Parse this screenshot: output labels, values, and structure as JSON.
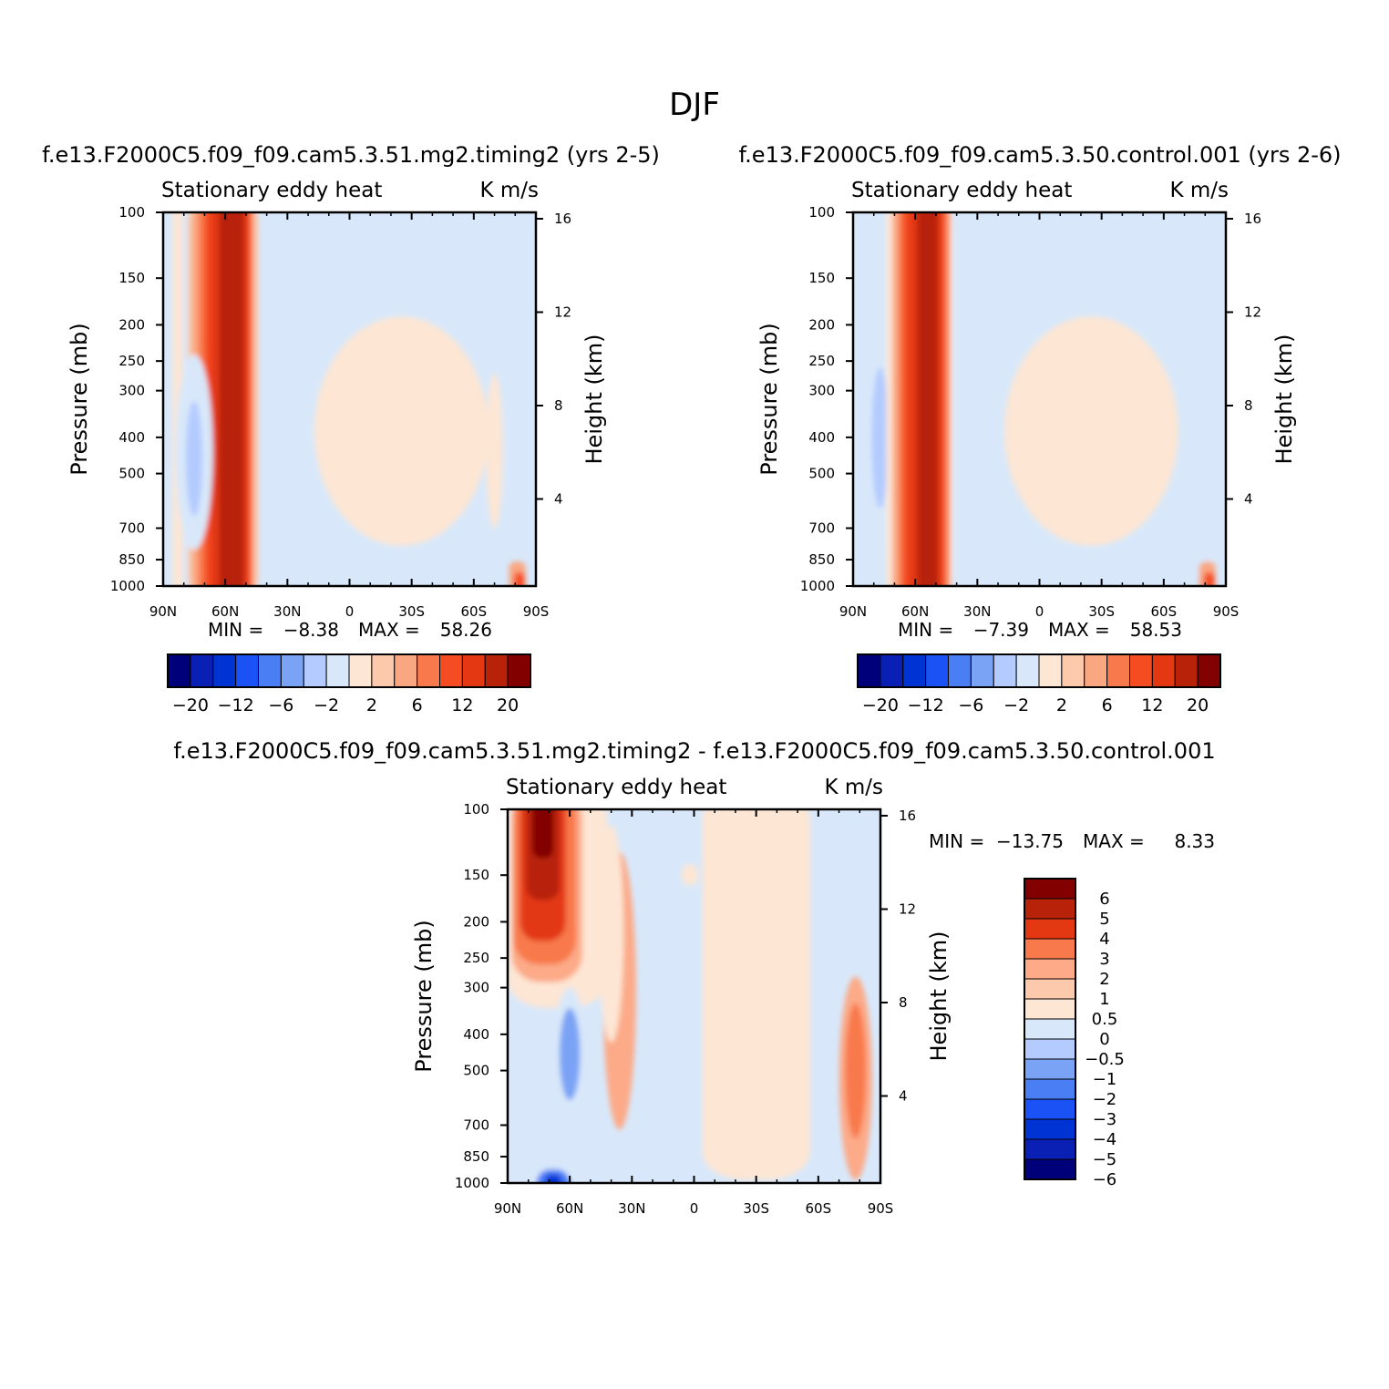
{
  "page_title": "DJF",
  "chart_data": [
    {
      "type": "heatmap",
      "title": "f.e13.F2000C5.f09_f09.cam5.3.51.mg2.timing2 (yrs 2-5)",
      "left_label": "Stationary eddy heat",
      "right_label": "K m/s",
      "ylabel": "Pressure (mb)",
      "ylabel_right": "Height (km)",
      "xlim": [
        -90,
        90
      ],
      "ylim": [
        1000,
        100
      ],
      "x_ticks": [
        {
          "value": -90,
          "label": "90N"
        },
        {
          "value": -60,
          "label": "60N"
        },
        {
          "value": -30,
          "label": "30N"
        },
        {
          "value": 0,
          "label": "0"
        },
        {
          "value": 30,
          "label": "30S"
        },
        {
          "value": 60,
          "label": "60S"
        },
        {
          "value": 90,
          "label": "90S"
        }
      ],
      "y_ticks": [
        100,
        150,
        200,
        250,
        300,
        400,
        500,
        700,
        850,
        1000
      ],
      "y_ticks_right": [
        4,
        8,
        12,
        16
      ],
      "stats": {
        "min_label": "MIN =",
        "min": "-8.38",
        "max_label": "MAX =",
        "max": "58.26"
      },
      "colorbar": {
        "orientation": "horizontal",
        "colors": [
          "#00007a",
          "#0a1fb3",
          "#0033d4",
          "#1a52f5",
          "#4a7ef5",
          "#7aa3f5",
          "#b3cbff",
          "#d8e8fa",
          "#fde6d4",
          "#fcc9ad",
          "#f9a781",
          "#f8794b",
          "#f54c22",
          "#e33812",
          "#b82208",
          "#820000"
        ],
        "tick_labels": [
          "-20",
          "-12",
          "-6",
          "-2",
          "2",
          "6",
          "12",
          "20"
        ]
      },
      "field": [
        {
          "level": 1,
          "lat_center": -83,
          "lat_half": 2.5,
          "p_top": 100,
          "p_bot": 1000
        },
        {
          "level": 2,
          "lat_center": -61,
          "lat_half": 17,
          "p_top": 100,
          "p_bot": 1000
        },
        {
          "level": 3,
          "lat_center": -61,
          "lat_half": 15,
          "p_top": 100,
          "p_bot": 1000
        },
        {
          "level": 4,
          "lat_center": -60,
          "lat_half": 13,
          "p_top": 100,
          "p_bot": 1000
        },
        {
          "level": 5,
          "lat_center": -59,
          "lat_half": 11,
          "p_top": 100,
          "p_bot": 1000
        },
        {
          "level": 6,
          "lat_center": -58,
          "lat_half": 9,
          "p_top": 100,
          "p_bot": 1000
        },
        {
          "level": 7,
          "lat_center": -57,
          "lat_half": 6,
          "p_top": 100,
          "p_bot": 1000
        },
        {
          "level": -1,
          "lat_center": -75,
          "lat_half": 9,
          "p_top": 240,
          "p_bot": 800
        },
        {
          "level": -2,
          "lat_center": -75,
          "lat_half": 4,
          "p_top": 320,
          "p_bot": 650
        },
        {
          "level": -1,
          "lat_center": -17,
          "lat_half": 3,
          "p_top": 130,
          "p_bot": 280
        },
        {
          "level": -1,
          "lat_center": 22,
          "lat_half": 2.5,
          "p_top": 120,
          "p_bot": 160
        },
        {
          "level": -1,
          "lat_center": 20,
          "lat_half": 7,
          "p_top": 900,
          "p_bot": 1000
        },
        {
          "level": 1,
          "lat_center": 25,
          "lat_half": 42,
          "p_top": 190,
          "p_bot": 780
        },
        {
          "level": 1,
          "lat_center": 70,
          "lat_half": 4,
          "p_top": 270,
          "p_bot": 700
        },
        {
          "level": 3,
          "lat_center": 81,
          "lat_half": 4,
          "p_top": 860,
          "p_bot": 1000
        },
        {
          "level": 5,
          "lat_center": 82,
          "lat_half": 2.5,
          "p_top": 920,
          "p_bot": 1000
        }
      ]
    },
    {
      "type": "heatmap",
      "title": "f.e13.F2000C5.f09_f09.cam5.3.50.control.001 (yrs 2-6)",
      "left_label": "Stationary eddy heat",
      "right_label": "K m/s",
      "ylabel": "Pressure (mb)",
      "ylabel_right": "Height (km)",
      "xlim": [
        -90,
        90
      ],
      "ylim": [
        1000,
        100
      ],
      "x_ticks": [
        {
          "value": -90,
          "label": "90N"
        },
        {
          "value": -60,
          "label": "60N"
        },
        {
          "value": -30,
          "label": "30N"
        },
        {
          "value": 0,
          "label": "0"
        },
        {
          "value": 30,
          "label": "30S"
        },
        {
          "value": 60,
          "label": "60S"
        },
        {
          "value": 90,
          "label": "90S"
        }
      ],
      "y_ticks": [
        100,
        150,
        200,
        250,
        300,
        400,
        500,
        700,
        850,
        1000
      ],
      "y_ticks_right": [
        4,
        8,
        12,
        16
      ],
      "stats": {
        "min_label": "MIN =",
        "min": "-7.39",
        "max_label": "MAX =",
        "max": "58.53"
      },
      "colorbar": {
        "orientation": "horizontal",
        "colors": [
          "#00007a",
          "#0a1fb3",
          "#0033d4",
          "#1a52f5",
          "#4a7ef5",
          "#7aa3f5",
          "#b3cbff",
          "#d8e8fa",
          "#fde6d4",
          "#fcc9ad",
          "#f9a781",
          "#f8794b",
          "#f54c22",
          "#e33812",
          "#b82208",
          "#820000"
        ],
        "tick_labels": [
          "-20",
          "-12",
          "-6",
          "-2",
          "2",
          "6",
          "12",
          "20"
        ]
      },
      "field": [
        {
          "level": -1,
          "lat_center": -78,
          "lat_half": 10,
          "p_top": 100,
          "p_bot": 800
        },
        {
          "level": -2,
          "lat_center": -77,
          "lat_half": 4,
          "p_top": 260,
          "p_bot": 620
        },
        {
          "level": 1,
          "lat_center": -58,
          "lat_half": 16,
          "p_top": 100,
          "p_bot": 1000
        },
        {
          "level": 3,
          "lat_center": -57,
          "lat_half": 14,
          "p_top": 100,
          "p_bot": 1000
        },
        {
          "level": 4,
          "lat_center": -56,
          "lat_half": 12,
          "p_top": 100,
          "p_bot": 1000
        },
        {
          "level": 5,
          "lat_center": -56,
          "lat_half": 10,
          "p_top": 100,
          "p_bot": 1000
        },
        {
          "level": 6,
          "lat_center": -55,
          "lat_half": 8,
          "p_top": 100,
          "p_bot": 1000
        },
        {
          "level": 7,
          "lat_center": -54,
          "lat_half": 5,
          "p_top": 100,
          "p_bot": 1000
        },
        {
          "level": -1,
          "lat_center": -17,
          "lat_half": 3,
          "p_top": 130,
          "p_bot": 280
        },
        {
          "level": -1,
          "lat_center": 22,
          "lat_half": 2.5,
          "p_top": 120,
          "p_bot": 160
        },
        {
          "level": -1,
          "lat_center": 20,
          "lat_half": 7,
          "p_top": 900,
          "p_bot": 1000
        },
        {
          "level": 1,
          "lat_center": 25,
          "lat_half": 42,
          "p_top": 190,
          "p_bot": 780
        },
        {
          "level": -1,
          "lat_center": 78,
          "lat_half": 7,
          "p_top": 280,
          "p_bot": 960
        },
        {
          "level": 3,
          "lat_center": 81,
          "lat_half": 4,
          "p_top": 860,
          "p_bot": 1000
        },
        {
          "level": 5,
          "lat_center": 82,
          "lat_half": 2.5,
          "p_top": 920,
          "p_bot": 1000
        }
      ]
    },
    {
      "type": "heatmap",
      "title": "f.e13.F2000C5.f09_f09.cam5.3.51.mg2.timing2 - f.e13.F2000C5.f09_f09.cam5.3.50.control.001",
      "left_label": "Stationary eddy heat",
      "right_label": "K m/s",
      "ylabel": "Pressure (mb)",
      "ylabel_right": "Height (km)",
      "xlim": [
        -90,
        90
      ],
      "ylim": [
        1000,
        100
      ],
      "x_ticks": [
        {
          "value": -90,
          "label": "90N"
        },
        {
          "value": -60,
          "label": "60N"
        },
        {
          "value": -30,
          "label": "30N"
        },
        {
          "value": 0,
          "label": "0"
        },
        {
          "value": 30,
          "label": "30S"
        },
        {
          "value": 60,
          "label": "60S"
        },
        {
          "value": 90,
          "label": "90S"
        }
      ],
      "y_ticks": [
        100,
        150,
        200,
        250,
        300,
        400,
        500,
        700,
        850,
        1000
      ],
      "y_ticks_right": [
        4,
        8,
        12,
        16
      ],
      "stats": {
        "min_label": "MIN =",
        "min": "-13.75",
        "max_label": "MAX =",
        "max": "8.33"
      },
      "colorbar": {
        "orientation": "vertical",
        "colors": [
          "#820000",
          "#b82208",
          "#e33812",
          "#f8794b",
          "#fcaa88",
          "#fcc9ad",
          "#fde6d4",
          "#d8e8fa",
          "#b3cbff",
          "#7aa3f5",
          "#4a7ef5",
          "#1a52f5",
          "#0033d4",
          "#0a1fb3",
          "#00007a"
        ],
        "tick_labels": [
          "6",
          "5",
          "4",
          "3",
          "2",
          "1",
          "0.5",
          "0",
          "-0.5",
          "-1",
          "-2",
          "-3",
          "-4",
          "-5",
          "-6"
        ]
      },
      "field": [
        {
          "level": 1,
          "lat_center": -66,
          "lat_half": 24,
          "p_top": 100,
          "p_bot": 340
        },
        {
          "level": 3,
          "lat_center": -71,
          "lat_half": 17,
          "p_top": 100,
          "p_bot": 290
        },
        {
          "level": 4,
          "lat_center": -72,
          "lat_half": 15,
          "p_top": 100,
          "p_bot": 260
        },
        {
          "level": 5,
          "lat_center": -73,
          "lat_half": 11,
          "p_top": 100,
          "p_bot": 225
        },
        {
          "level": 6,
          "lat_center": -73,
          "lat_half": 8,
          "p_top": 100,
          "p_bot": 175
        },
        {
          "level": 7,
          "lat_center": -73,
          "lat_half": 5,
          "p_top": 100,
          "p_bot": 135
        },
        {
          "level": 3,
          "lat_center": -36,
          "lat_half": 8,
          "p_top": 130,
          "p_bot": 720
        },
        {
          "level": 1,
          "lat_center": -40,
          "lat_half": 6,
          "p_top": 110,
          "p_bot": 420
        },
        {
          "level": -1,
          "lat_center": -60,
          "lat_half": 9,
          "p_top": 300,
          "p_bot": 950
        },
        {
          "level": -3,
          "lat_center": -60,
          "lat_half": 5,
          "p_top": 340,
          "p_bot": 600
        },
        {
          "level": -1,
          "lat_center": -22,
          "lat_half": 6,
          "p_top": 100,
          "p_bot": 160
        },
        {
          "level": -1,
          "lat_center": -8,
          "lat_half": 6,
          "p_top": 380,
          "p_bot": 900
        },
        {
          "level": 1,
          "lat_center": -2,
          "lat_half": 4,
          "p_top": 140,
          "p_bot": 160
        },
        {
          "level": 1,
          "lat_center": 30,
          "lat_half": 26,
          "p_top": 100,
          "p_bot": 980
        },
        {
          "level": -1,
          "lat_center": 75,
          "lat_half": 7,
          "p_top": 100,
          "p_bot": 210
        },
        {
          "level": 3,
          "lat_center": 78,
          "lat_half": 8,
          "p_top": 280,
          "p_bot": 980
        },
        {
          "level": 4,
          "lat_center": 78,
          "lat_half": 5,
          "p_top": 330,
          "p_bot": 760
        },
        {
          "level": -1,
          "lat_center": -72,
          "lat_half": 12,
          "p_top": 860,
          "p_bot": 1000
        },
        {
          "level": -4,
          "lat_center": -68,
          "lat_half": 8,
          "p_top": 920,
          "p_bot": 1000
        },
        {
          "level": -6,
          "lat_center": -68,
          "lat_half": 4,
          "p_top": 950,
          "p_bot": 1000
        }
      ]
    }
  ]
}
